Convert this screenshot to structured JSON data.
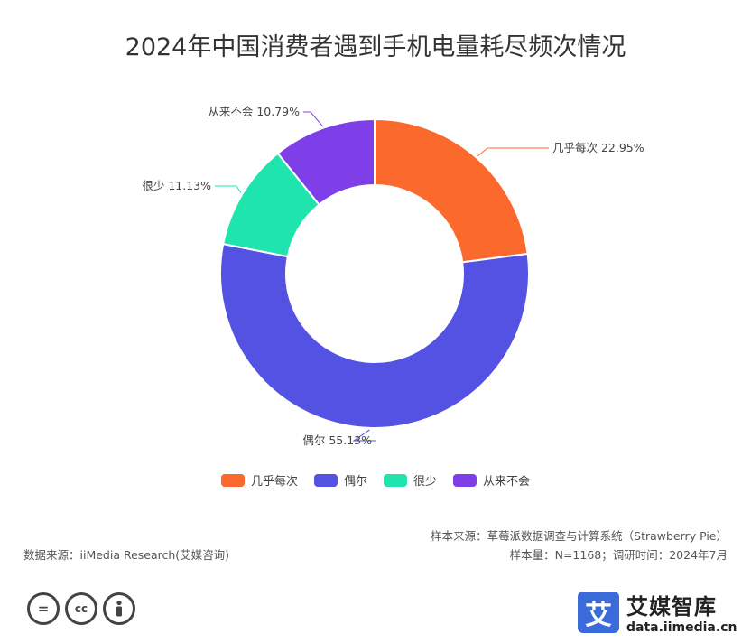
{
  "chart_data": {
    "type": "pie",
    "donut": true,
    "title": "2024年中国消费者遇到手机电量耗尽频次情况",
    "categories": [
      "几乎每次",
      "偶尔",
      "很少",
      "从来不会"
    ],
    "values": [
      22.95,
      55.13,
      11.13,
      10.79
    ],
    "unit": "%",
    "colors": [
      "#fb6a2c",
      "#5352e3",
      "#1fe4ad",
      "#7f3fe8"
    ],
    "slice_labels": [
      "几乎每次 22.95%",
      "偶尔 55.13%",
      "很少 11.13%",
      "从来不会 10.79%"
    ],
    "legend_position": "bottom"
  },
  "footer": {
    "data_source": "数据来源：iiMedia Research(艾媒咨询)",
    "sample_source": "样本来源：草莓派数据调查与计算系统（Strawberry Pie）",
    "sample_info": "样本量：N=1168；调研时间：2024年7月"
  },
  "license_icons": [
    "equals-icon",
    "cc-icon",
    "person-icon"
  ],
  "brand": {
    "logo_char": "艾",
    "name": "艾媒智库",
    "url": "data.iimedia.cn"
  }
}
